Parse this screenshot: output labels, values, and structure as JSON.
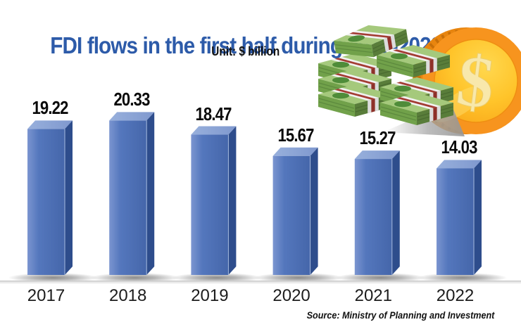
{
  "title": "FDI flows in the first half during 2017-2022",
  "unit_label": "Unit: $ billion",
  "source": "Source: Ministry of Planning and Investment",
  "chart_data": {
    "type": "bar",
    "categories": [
      "2017",
      "2018",
      "2019",
      "2020",
      "2021",
      "2022"
    ],
    "values": [
      19.22,
      20.33,
      18.47,
      15.67,
      15.27,
      14.03
    ],
    "title": "FDI flows in the first half during 2017-2022",
    "xlabel": "",
    "ylabel": "",
    "unit": "$ billion",
    "ylim": [
      0,
      22
    ],
    "grid": false,
    "legend": false,
    "bar_style": "3d-blue",
    "data_labels": [
      "19.22",
      "20.33",
      "18.47",
      "15.67",
      "15.27",
      "14.03"
    ],
    "source": "Source: Ministry of Planning and Investment"
  },
  "colors": {
    "title": "#2d5ba9",
    "text": "#111111",
    "bar_front_left": "#7b95d0",
    "bar_front_mid": "#5477bd",
    "bar_front_right": "#4566aa",
    "bar_top_left": "#98b0dc",
    "bar_top_right": "#7f98ce",
    "bar_side": "#2e4d8c",
    "bar_edge": "#a7bbe0",
    "baseline": "#cccccc",
    "coin_gold": "#f7941e",
    "coin_face": "#ffc32b",
    "bill_green": "#71a14a"
  },
  "illustration": {
    "coin_symbol": "$",
    "icons": [
      "dollar-coin-icon",
      "money-stacks-icon"
    ]
  }
}
